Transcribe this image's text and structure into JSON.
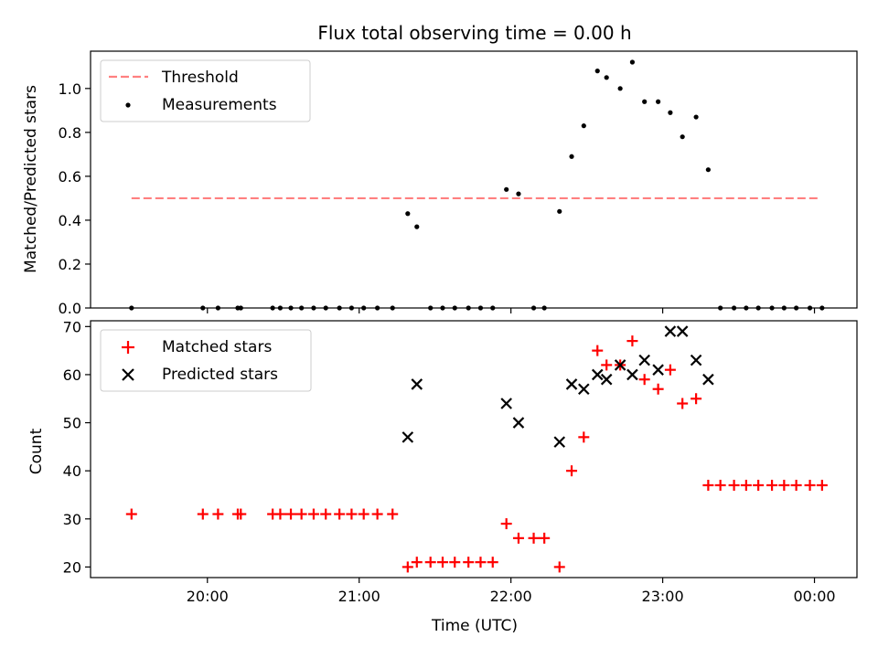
{
  "title": "Flux total observing time = 0.00 h",
  "chart_data": [
    {
      "type": "scatter",
      "ylabel": "Matched/Predicted stars",
      "xlim": [
        19.23,
        24.28
      ],
      "ylim": [
        0,
        1.17
      ],
      "yticks": [
        0.0,
        0.2,
        0.4,
        0.6,
        0.8,
        1.0
      ],
      "ytick_labels": [
        "0.0",
        "0.2",
        "0.4",
        "0.6",
        "0.8",
        "1.0"
      ],
      "grid": false,
      "legend": "upper-left",
      "threshold": {
        "name": "Threshold",
        "value": 0.5,
        "x": [
          19.5,
          24.03
        ],
        "color": "#ff8080"
      },
      "series": [
        {
          "name": "Measurements",
          "marker": "dot",
          "color": "#000000",
          "x": [
            19.5,
            19.97,
            20.07,
            20.2,
            20.22,
            20.43,
            20.48,
            20.55,
            20.62,
            20.7,
            20.78,
            20.87,
            20.95,
            21.03,
            21.12,
            21.22,
            21.32,
            21.38,
            21.47,
            21.55,
            21.63,
            21.72,
            21.8,
            21.88,
            21.97,
            22.05,
            22.15,
            22.22,
            22.32,
            22.4,
            22.48,
            22.57,
            22.63,
            22.72,
            22.8,
            22.88,
            22.97,
            23.05,
            23.13,
            23.22,
            23.3,
            23.38,
            23.47,
            23.55,
            23.63,
            23.72,
            23.8,
            23.88,
            23.97,
            24.05
          ],
          "y": [
            0,
            0,
            0,
            0,
            0,
            0,
            0,
            0,
            0,
            0,
            0,
            0,
            0,
            0,
            0,
            0,
            0.43,
            0.37,
            0,
            0,
            0,
            0,
            0,
            0,
            0.54,
            0.52,
            0,
            0,
            0.44,
            0.69,
            0.83,
            1.08,
            1.05,
            1.0,
            1.12,
            0.94,
            0.94,
            0.89,
            0.78,
            0.87,
            0.63,
            0,
            0,
            0,
            0,
            0,
            0,
            0,
            0,
            0
          ]
        }
      ]
    },
    {
      "type": "scatter",
      "xlabel": "Time (UTC)",
      "ylabel": "Count",
      "xlim": [
        19.23,
        24.28
      ],
      "ylim": [
        17.8,
        71.2
      ],
      "xticks": [
        20,
        21,
        22,
        23,
        24
      ],
      "xtick_labels": [
        "20:00",
        "21:00",
        "22:00",
        "23:00",
        "00:00"
      ],
      "yticks": [
        20,
        30,
        40,
        50,
        60,
        70
      ],
      "ytick_labels": [
        "20",
        "30",
        "40",
        "50",
        "60",
        "70"
      ],
      "grid": false,
      "legend": "upper-left",
      "series": [
        {
          "name": "Matched stars",
          "marker": "plus",
          "color": "#ff0000",
          "x": [
            19.5,
            19.97,
            20.07,
            20.2,
            20.22,
            20.43,
            20.48,
            20.55,
            20.62,
            20.7,
            20.78,
            20.87,
            20.95,
            21.03,
            21.12,
            21.22,
            21.32,
            21.38,
            21.47,
            21.55,
            21.63,
            21.72,
            21.8,
            21.88,
            21.97,
            22.05,
            22.15,
            22.22,
            22.32,
            22.4,
            22.48,
            22.57,
            22.63,
            22.72,
            22.8,
            22.88,
            22.97,
            23.05,
            23.13,
            23.22,
            23.3,
            23.38,
            23.47,
            23.55,
            23.63,
            23.72,
            23.8,
            23.88,
            23.97,
            24.05
          ],
          "y": [
            31,
            31,
            31,
            31,
            31,
            31,
            31,
            31,
            31,
            31,
            31,
            31,
            31,
            31,
            31,
            31,
            20,
            21,
            21,
            21,
            21,
            21,
            21,
            21,
            29,
            26,
            26,
            26,
            20,
            40,
            47,
            65,
            62,
            62,
            67,
            59,
            57,
            61,
            54,
            55,
            37,
            37,
            37,
            37,
            37,
            37,
            37,
            37,
            37,
            37
          ]
        },
        {
          "name": "Predicted stars",
          "marker": "x",
          "color": "#000000",
          "x": [
            21.32,
            21.38,
            21.97,
            22.05,
            22.32,
            22.4,
            22.48,
            22.57,
            22.63,
            22.72,
            22.8,
            22.88,
            22.97,
            23.05,
            23.13,
            23.22,
            23.3
          ],
          "y": [
            47,
            58,
            54,
            50,
            46,
            58,
            57,
            60,
            59,
            62,
            60,
            63,
            61,
            69,
            69,
            63,
            59
          ]
        }
      ]
    }
  ]
}
